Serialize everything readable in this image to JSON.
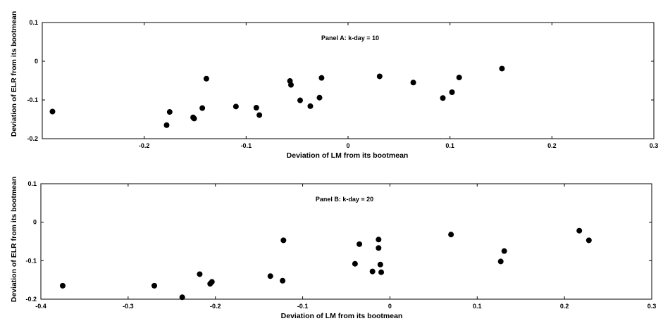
{
  "chart_data": [
    {
      "type": "scatter",
      "title": "Panel A: k-day = 10",
      "xlabel": "Deviation of LM from its bootmean",
      "ylabel": "Deviation of ELR from its bootmean",
      "xlim": [
        -0.3,
        0.3
      ],
      "ylim": [
        -0.2,
        0.1
      ],
      "xticks": [
        -0.3,
        -0.2,
        -0.1,
        0,
        0.1,
        0.2,
        0.3
      ],
      "xtick_labels": [
        "",
        "-0.2",
        "-0.1",
        "0",
        "0.1",
        "0.2",
        "0.3"
      ],
      "yticks": [
        -0.2,
        -0.1,
        0,
        0.1
      ],
      "ytick_labels": [
        "-0.2",
        "-0.1",
        "0",
        "0.1"
      ],
      "grid": false,
      "marker_color": "#000000",
      "x": [
        -0.29,
        -0.178,
        -0.175,
        -0.152,
        -0.151,
        -0.143,
        -0.139,
        -0.11,
        -0.09,
        -0.087,
        -0.057,
        -0.056,
        -0.047,
        -0.037,
        -0.028,
        -0.026,
        0.031,
        0.064,
        0.093,
        0.102,
        0.109,
        0.151
      ],
      "y": [
        -0.13,
        -0.165,
        -0.131,
        -0.145,
        -0.148,
        -0.121,
        -0.045,
        -0.117,
        -0.12,
        -0.139,
        -0.051,
        -0.061,
        -0.101,
        -0.116,
        -0.094,
        -0.043,
        -0.039,
        -0.055,
        -0.095,
        -0.08,
        -0.042,
        -0.019
      ]
    },
    {
      "type": "scatter",
      "title": "Panel B: k-day = 20",
      "xlabel": "Deviation of LM from its bootmean",
      "ylabel": "Deviation of ELR from its bootmean",
      "xlim": [
        -0.4,
        0.3
      ],
      "ylim": [
        -0.2,
        0.1
      ],
      "xticks": [
        -0.4,
        -0.3,
        -0.2,
        -0.1,
        0,
        0.1,
        0.2,
        0.3
      ],
      "xtick_labels": [
        "-0.4",
        "-0.3",
        "-0.2",
        "-0.1",
        "0",
        "0.1",
        "0.2",
        "0.3"
      ],
      "yticks": [
        -0.2,
        -0.1,
        0,
        0.1
      ],
      "ytick_labels": [
        "-0.2",
        "-0.1",
        "0",
        "0.1"
      ],
      "grid": false,
      "marker_color": "#000000",
      "x": [
        -0.375,
        -0.27,
        -0.238,
        -0.218,
        -0.206,
        -0.204,
        -0.137,
        -0.123,
        -0.122,
        -0.04,
        -0.035,
        -0.02,
        -0.013,
        -0.013,
        -0.011,
        -0.01,
        0.07,
        0.127,
        0.131,
        0.217,
        0.228
      ],
      "y": [
        -0.165,
        -0.165,
        -0.195,
        -0.135,
        -0.16,
        -0.155,
        -0.14,
        -0.152,
        -0.047,
        -0.108,
        -0.057,
        -0.128,
        -0.045,
        -0.067,
        -0.11,
        -0.13,
        -0.032,
        -0.102,
        -0.075,
        -0.022,
        -0.047
      ]
    }
  ]
}
